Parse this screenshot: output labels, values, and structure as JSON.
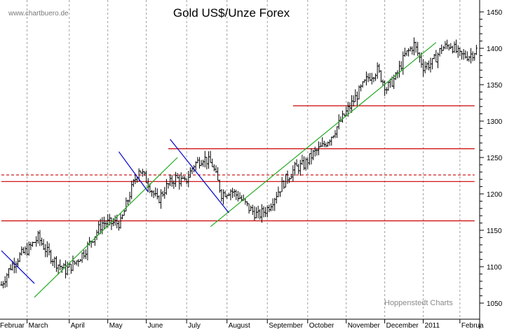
{
  "chart_data": {
    "type": "ohlc-bar",
    "title": "Gold US$/Unze Forex",
    "watermark": "www.chartbuero.de",
    "source": "Hoppenstedt Charts",
    "x_months": [
      "Februar",
      "March",
      "April",
      "May",
      "June",
      "July",
      "August",
      "September",
      "October",
      "November",
      "December",
      "2011",
      "Februa"
    ],
    "ylim": [
      1040,
      1465
    ],
    "yticks": [
      1050,
      1100,
      1150,
      1200,
      1250,
      1300,
      1350,
      1400,
      1450
    ],
    "grid": "vertical dashed at month boundaries",
    "colors": {
      "bars": "#000000",
      "support": "#cc0000",
      "uptrend": "#22aa22",
      "downtrend": "#0000cc",
      "grid": "#a0a0a0"
    },
    "horizontal_levels": [
      {
        "value": 1163,
        "style": "solid",
        "from_day": 0,
        "to_day": 258
      },
      {
        "value": 1217,
        "style": "solid",
        "from_day": 0,
        "to_day": 258
      },
      {
        "value": 1226,
        "style": "dashed",
        "from_day": 0,
        "to_day": 258
      },
      {
        "value": 1262,
        "style": "solid",
        "from_day": 91,
        "to_day": 258
      },
      {
        "value": 1321,
        "style": "solid",
        "from_day": 159,
        "to_day": 258
      }
    ],
    "trendlines": [
      {
        "color": "uptrend",
        "x1": 18,
        "y1": 1058,
        "x2": 96,
        "y2": 1250
      },
      {
        "color": "uptrend",
        "x1": 114,
        "y1": 1155,
        "x2": 237,
        "y2": 1408
      },
      {
        "color": "downtrend",
        "x1": 0,
        "y1": 1122,
        "x2": 18,
        "y2": 1077
      },
      {
        "color": "downtrend",
        "x1": 64,
        "y1": 1258,
        "x2": 80,
        "y2": 1203
      },
      {
        "color": "downtrend",
        "x1": 92,
        "y1": 1275,
        "x2": 124,
        "y2": 1174
      }
    ],
    "weekly_closes": [
      1075,
      1100,
      1115,
      1125,
      1140,
      1120,
      1105,
      1095,
      1105,
      1120,
      1140,
      1160,
      1160,
      1160,
      1200,
      1235,
      1215,
      1190,
      1210,
      1222,
      1215,
      1240,
      1250,
      1240,
      1200,
      1205,
      1195,
      1180,
      1170,
      1180,
      1200,
      1220,
      1235,
      1240,
      1255,
      1265,
      1280,
      1300,
      1320,
      1340,
      1360,
      1370,
      1345,
      1360,
      1390,
      1405,
      1375,
      1380,
      1400,
      1405,
      1390,
      1390,
      1400,
      1420,
      1395,
      1370,
      1350,
      1325,
      1340,
      1352
    ]
  }
}
